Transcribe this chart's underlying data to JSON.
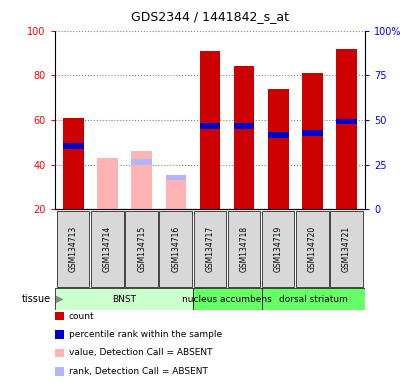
{
  "title": "GDS2344 / 1441842_s_at",
  "samples": [
    "GSM134713",
    "GSM134714",
    "GSM134715",
    "GSM134716",
    "GSM134717",
    "GSM134718",
    "GSM134719",
    "GSM134720",
    "GSM134721"
  ],
  "absent": [
    false,
    true,
    true,
    true,
    false,
    false,
    false,
    false,
    false
  ],
  "count_values": [
    61,
    0,
    0,
    0,
    91,
    84,
    74,
    81,
    92
  ],
  "rank_values": [
    47,
    0,
    0,
    0,
    56,
    56,
    52,
    53,
    58
  ],
  "absent_value": [
    0,
    43,
    46,
    33,
    0,
    0,
    0,
    0,
    0
  ],
  "absent_rank": [
    0,
    0,
    40,
    33,
    0,
    0,
    0,
    0,
    0
  ],
  "ylim": [
    20,
    100
  ],
  "y2lim": [
    0,
    100
  ],
  "yticks": [
    20,
    40,
    60,
    80,
    100
  ],
  "y2ticks": [
    0,
    25,
    50,
    75,
    100
  ],
  "y2ticklabels": [
    "0",
    "25",
    "50",
    "75",
    "100%"
  ],
  "bar_width": 0.6,
  "color_red": "#cc0000",
  "color_blue": "#0000cc",
  "color_pink": "#ffb3b3",
  "color_lightblue": "#b3b3ff",
  "tissue_groups": [
    {
      "label": "BNST",
      "start": 0,
      "end": 4,
      "color": "#ccffcc"
    },
    {
      "label": "nucleus accumbens",
      "start": 4,
      "end": 6,
      "color": "#66ff66"
    },
    {
      "label": "dorsal striatum",
      "start": 6,
      "end": 9,
      "color": "#66ff66"
    }
  ],
  "legend_items": [
    {
      "color": "#cc0000",
      "label": "count"
    },
    {
      "color": "#0000cc",
      "label": "percentile rank within the sample"
    },
    {
      "color": "#ffb3b3",
      "label": "value, Detection Call = ABSENT"
    },
    {
      "color": "#b3b3ff",
      "label": "rank, Detection Call = ABSENT"
    }
  ]
}
